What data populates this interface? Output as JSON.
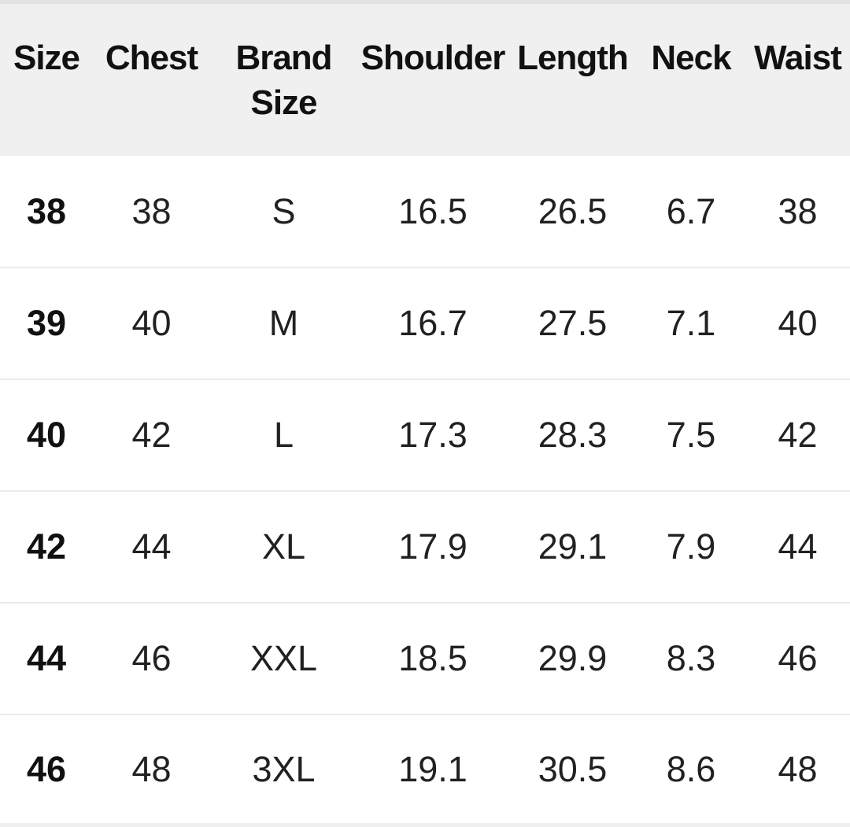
{
  "colors": {
    "header_bg": "#f0f0f0",
    "top_divider": "#e2e2e2",
    "row_divider": "#ebebeb",
    "header_text": "#111111",
    "cell_text": "#212121",
    "bottom_strip": "#f0f0f0"
  },
  "table": {
    "title": "size-chart",
    "headers": [
      "Size",
      "Chest",
      "Brand Size",
      "Shoulder",
      "Length",
      "Neck",
      "Waist"
    ],
    "rows": [
      [
        "38",
        "38",
        "S",
        "16.5",
        "26.5",
        "6.7",
        "38"
      ],
      [
        "39",
        "40",
        "M",
        "16.7",
        "27.5",
        "7.1",
        "40"
      ],
      [
        "40",
        "42",
        "L",
        "17.3",
        "28.3",
        "7.5",
        "42"
      ],
      [
        "42",
        "44",
        "XL",
        "17.9",
        "29.1",
        "7.9",
        "44"
      ],
      [
        "44",
        "46",
        "XXL",
        "18.5",
        "29.9",
        "8.3",
        "46"
      ],
      [
        "46",
        "48",
        "3XL",
        "19.1",
        "30.5",
        "8.6",
        "48"
      ]
    ]
  }
}
